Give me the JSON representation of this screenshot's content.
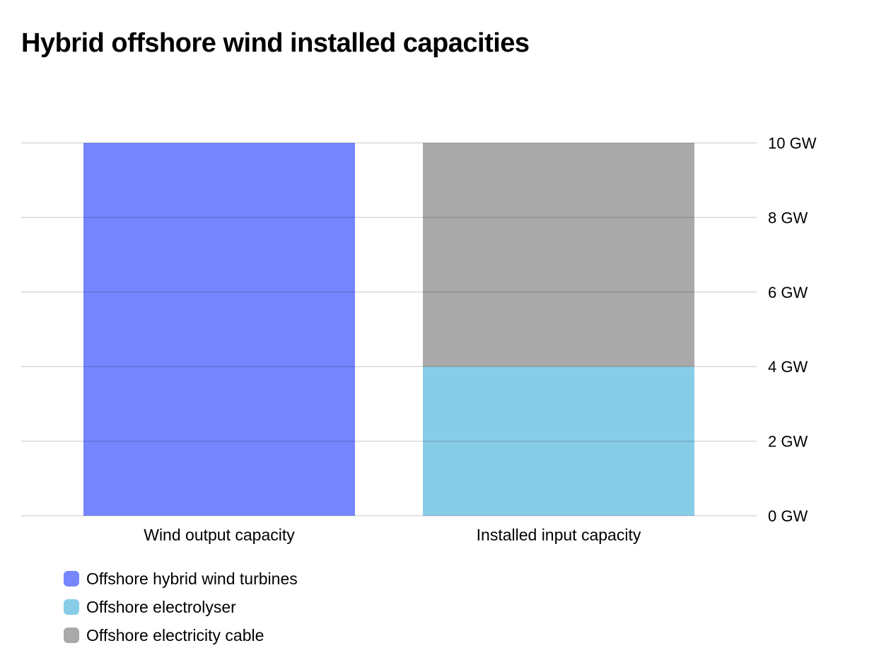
{
  "chart_data": {
    "type": "bar",
    "stacked": true,
    "title": "Hybrid offshore wind installed capacities",
    "categories": [
      "Wind output capacity",
      "Installed input capacity"
    ],
    "y_axis": {
      "position": "right",
      "min": 0,
      "max": 10,
      "ticks": [
        "0 GW",
        "2 GW",
        "4 GW",
        "6 GW",
        "8 GW",
        "10 GW"
      ],
      "tick_values": [
        0,
        2,
        4,
        6,
        8,
        10
      ],
      "unit": "GW"
    },
    "grid": true,
    "legend_position": "bottom-left",
    "series": [
      {
        "name": "Offshore hybrid wind turbines",
        "color": "#7586ff",
        "values": [
          10,
          0
        ]
      },
      {
        "name": "Offshore electrolyser",
        "color": "#88cde8",
        "values": [
          0,
          4
        ]
      },
      {
        "name": "Offshore electricity cable",
        "color": "#a9a9a9",
        "values": [
          0,
          6
        ]
      }
    ]
  }
}
